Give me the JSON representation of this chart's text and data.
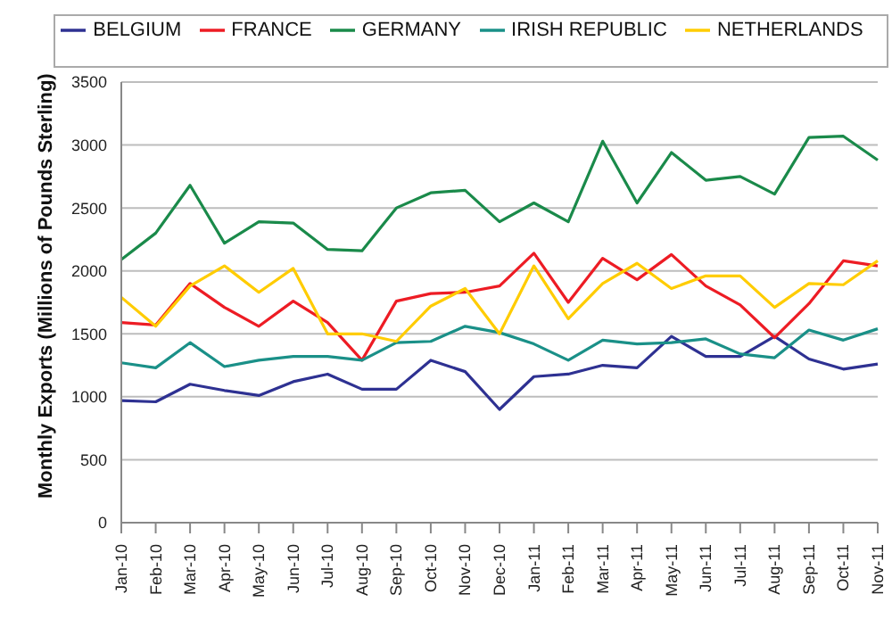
{
  "chart_data": {
    "type": "line",
    "ylabel": "Monthly Exports (Millions of Pounds Sterling)",
    "categories": [
      "Jan-10",
      "Feb-10",
      "Mar-10",
      "Apr-10",
      "May-10",
      "Jun-10",
      "Jul-10",
      "Aug-10",
      "Sep-10",
      "Oct-10",
      "Nov-10",
      "Dec-10",
      "Jan-11",
      "Feb-11",
      "Mar-11",
      "Apr-11",
      "May-11",
      "Jun-11",
      "Jul-11",
      "Aug-11",
      "Sep-11",
      "Oct-11",
      "Nov-11"
    ],
    "series": [
      {
        "name": "BELGIUM",
        "color": "#2e3192",
        "values": [
          970,
          960,
          1100,
          1050,
          1010,
          1120,
          1180,
          1060,
          1060,
          1290,
          1200,
          900,
          1160,
          1180,
          1250,
          1230,
          1480,
          1320,
          1320,
          1480,
          1300,
          1220,
          1260
        ]
      },
      {
        "name": "FRANCE",
        "color": "#ed1c24",
        "values": [
          1590,
          1570,
          1900,
          1710,
          1560,
          1760,
          1590,
          1290,
          1760,
          1820,
          1830,
          1880,
          2140,
          1750,
          2100,
          1930,
          2130,
          1880,
          1730,
          1470,
          1740,
          2080,
          2040
        ]
      },
      {
        "name": "GERMANY",
        "color": "#1a8a4a",
        "values": [
          2090,
          2300,
          2680,
          2220,
          2390,
          2380,
          2170,
          2160,
          2500,
          2620,
          2640,
          2390,
          2540,
          2390,
          3030,
          2540,
          2940,
          2720,
          2750,
          2610,
          3060,
          3070,
          2880
        ]
      },
      {
        "name": "IRISH REPUBLIC",
        "color": "#1a9088",
        "values": [
          1270,
          1230,
          1430,
          1240,
          1290,
          1320,
          1320,
          1290,
          1430,
          1440,
          1560,
          1510,
          1420,
          1290,
          1450,
          1420,
          1430,
          1460,
          1340,
          1310,
          1530,
          1450,
          1540
        ]
      },
      {
        "name": "NETHERLANDS",
        "color": "#ffcc00",
        "values": [
          1790,
          1560,
          1880,
          2040,
          1830,
          2020,
          1500,
          1500,
          1440,
          1720,
          1860,
          1500,
          2040,
          1620,
          1900,
          2060,
          1860,
          1960,
          1960,
          1710,
          1900,
          1890,
          2080
        ]
      }
    ],
    "ylim": [
      0,
      3500
    ],
    "yticks": [
      0,
      500,
      1000,
      1500,
      2000,
      2500,
      3000,
      3500
    ],
    "grid": "y",
    "legend": "top",
    "marker": "none",
    "line_style": "solid"
  }
}
